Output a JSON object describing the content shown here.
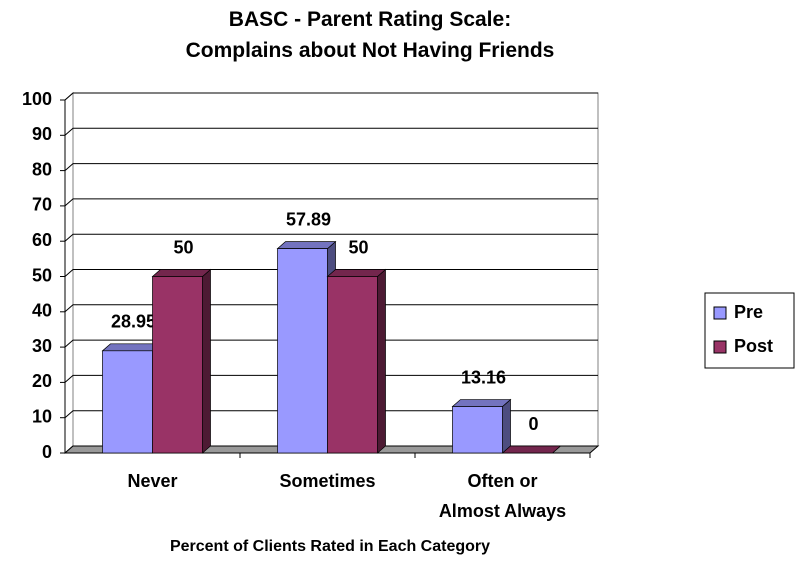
{
  "chart_data": {
    "type": "bar3d",
    "title": "BASC - Parent Rating Scale:\nComplains about Not Having Friends",
    "x_label": "Percent of Clients Rated in Each Category",
    "categories": [
      "Never",
      "Sometimes",
      "Often or\nAlmost Always"
    ],
    "series": [
      {
        "name": "Pre",
        "color": "#9999ff",
        "values": [
          28.95,
          57.89,
          13.16
        ]
      },
      {
        "name": "Post",
        "color": "#993366",
        "values": [
          50,
          50,
          0
        ]
      }
    ],
    "ylim": [
      0,
      100
    ],
    "yticks": [
      0,
      10,
      20,
      30,
      40,
      50,
      60,
      70,
      80,
      90,
      100
    ],
    "grid": true,
    "legend": "right"
  }
}
